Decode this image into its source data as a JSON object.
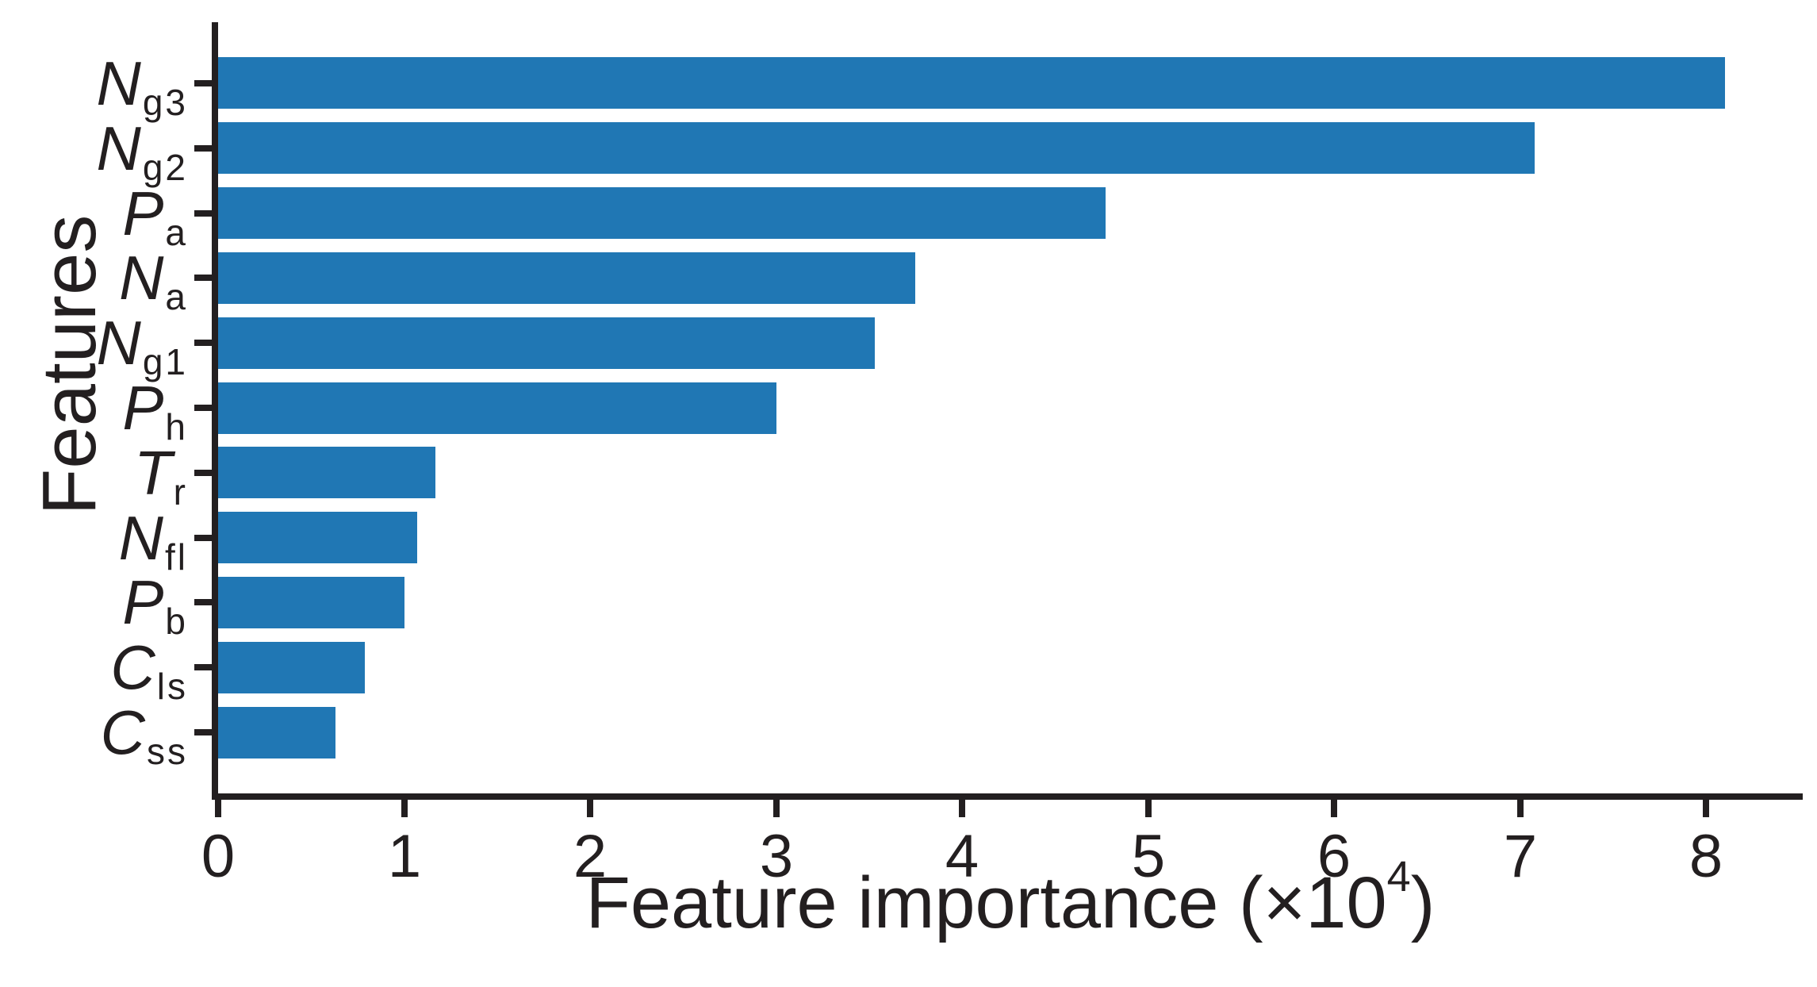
{
  "chart_data": {
    "type": "bar",
    "orientation": "horizontal",
    "title": "",
    "xlabel": "Feature importance (×10⁴)",
    "xlabel_parts": {
      "prefix": "Feature importance (×10",
      "sup": "4",
      "suffix": ")"
    },
    "ylabel": "Features",
    "xlim": [
      0,
      8.52
    ],
    "xticks": [
      0,
      1,
      2,
      3,
      4,
      5,
      6,
      7,
      8
    ],
    "grid": false,
    "legend": null,
    "bar_color": "#2077b4",
    "axis_color": "#231f20",
    "categories": [
      "Ng3",
      "Ng2",
      "Pa",
      "Na",
      "Ng1",
      "Ph",
      "Tr",
      "Nfl",
      "Pb",
      "Cls",
      "Css"
    ],
    "categories_rich": [
      {
        "main": "N",
        "sub": "g3"
      },
      {
        "main": "N",
        "sub": "g2"
      },
      {
        "main": "P",
        "sub": "a"
      },
      {
        "main": "N",
        "sub": "a"
      },
      {
        "main": "N",
        "sub": "g1"
      },
      {
        "main": "P",
        "sub": "h"
      },
      {
        "main": "T",
        "sub": "r"
      },
      {
        "main": "N",
        "sub": "fl"
      },
      {
        "main": "P",
        "sub": "b"
      },
      {
        "main": "C",
        "sub": "ls"
      },
      {
        "main": "C",
        "sub": "ss"
      }
    ],
    "values": [
      8.1,
      7.08,
      4.77,
      3.75,
      3.53,
      3.0,
      1.17,
      1.07,
      1.0,
      0.79,
      0.63
    ]
  }
}
